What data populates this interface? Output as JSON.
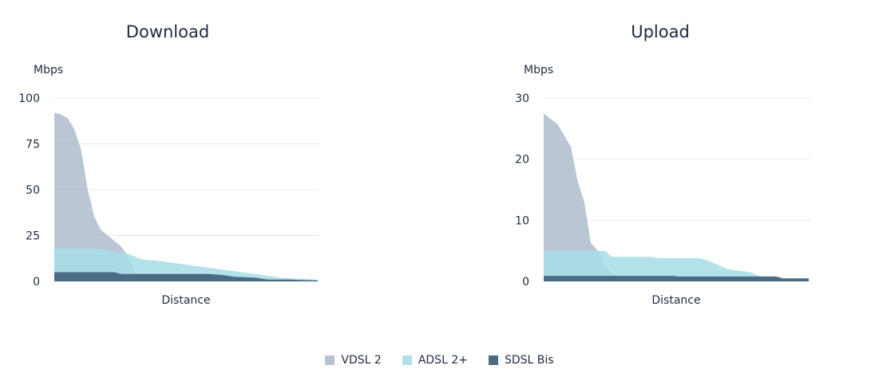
{
  "chart_data": [
    {
      "type": "area",
      "title": "Download",
      "ylabel": "Mbps",
      "xlabel": "Distance",
      "ylim": [
        0,
        100
      ],
      "yticks": [
        0,
        25,
        50,
        75,
        100
      ],
      "xlim": [
        0,
        39.4
      ],
      "grid": true,
      "series": [
        {
          "name": "VDSL 2",
          "x": [
            0,
            1,
            2,
            3,
            4,
            5,
            6,
            7,
            8,
            9,
            10,
            11,
            12,
            13
          ],
          "y": [
            92,
            91,
            89,
            83,
            72,
            50,
            35,
            28,
            25,
            22,
            19,
            14,
            5,
            0
          ]
        },
        {
          "name": "ADSL 2+",
          "x": [
            0,
            5,
            7.4,
            9,
            11,
            13,
            16,
            18,
            20,
            22,
            24,
            26,
            28,
            30,
            32,
            34,
            35.9,
            39.4
          ],
          "y": [
            18,
            18,
            17.5,
            16.5,
            15,
            12,
            11,
            10,
            9,
            8,
            7,
            6,
            5,
            4,
            3,
            2,
            1.5,
            1
          ]
        },
        {
          "name": "SDSL Bis",
          "x": [
            0,
            9,
            10,
            23,
            25,
            27,
            30,
            32,
            35,
            39.4
          ],
          "y": [
            5,
            5,
            4,
            4,
            3.5,
            2.5,
            2,
            1,
            1,
            0.5
          ]
        }
      ]
    },
    {
      "type": "area",
      "title": "Upload",
      "ylabel": "Mbps",
      "xlabel": "Distance",
      "ylim": [
        0,
        30
      ],
      "yticks": [
        0,
        10,
        20,
        30
      ],
      "xlim": [
        0,
        39.9
      ],
      "grid": true,
      "series": [
        {
          "name": "VDSL 2",
          "x": [
            0,
            2.1,
            4.1,
            5.1,
            6.1,
            7.1,
            8.3,
            9.3,
            10.3,
            11.3
          ],
          "y": [
            27.5,
            25.7,
            22,
            16.5,
            13,
            6.3,
            4.8,
            2.5,
            1.2,
            0.9
          ]
        },
        {
          "name": "ADSL 2+",
          "x": [
            0,
            9.3,
            10.2,
            16.3,
            17.3,
            23.3,
            24.5,
            25.6,
            27.7,
            29.7,
            31,
            32.6,
            35,
            36,
            39.9
          ],
          "y": [
            5,
            5,
            4,
            4,
            3.8,
            3.8,
            3.5,
            3,
            2,
            1.7,
            1.5,
            0.8,
            0.8,
            0.5,
            0.5
          ]
        },
        {
          "name": "SDSL Bis",
          "x": [
            0,
            19.6,
            20,
            35,
            36,
            39.9
          ],
          "y": [
            0.9,
            0.9,
            0.8,
            0.8,
            0.5,
            0.5
          ]
        }
      ]
    }
  ],
  "colors": {
    "VDSL 2": "#a3b3c6",
    "ADSL 2+": "#a6dde8",
    "SDSL Bis": "#3e6079"
  },
  "legend": {
    "placement": "bottom",
    "items": [
      "VDSL 2",
      "ADSL 2+",
      "SDSL Bis"
    ]
  }
}
